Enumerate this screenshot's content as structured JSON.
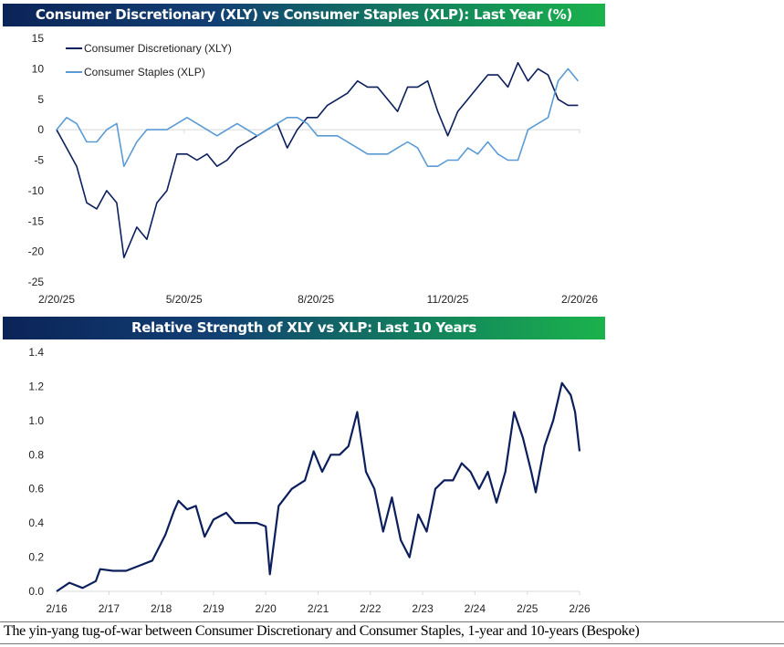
{
  "caption": "The yin-yang tug-of-war between Consumer Discretionary and Consumer Staples, 1-year and 10-years (Bespoke)",
  "colors": {
    "xly": "#0c1f5c",
    "xlp": "#5b9bd5",
    "header_start": "#0b2458",
    "header_end": "#1bb24c"
  },
  "chart_data": [
    {
      "type": "line",
      "title": "Consumer Discretionary (XLY) vs Consumer Staples (XLP): Last Year (%)",
      "xlim": [
        "2025-02-20",
        "2026-02-20"
      ],
      "ylim": [
        -25,
        15
      ],
      "yticks": [
        "15",
        "10",
        "5",
        "0",
        "-5",
        "-10",
        "-15",
        "-20",
        "-25"
      ],
      "ytick_values": [
        15,
        10,
        5,
        0,
        -5,
        -10,
        -15,
        -20,
        -25
      ],
      "xticks": [
        "2/20/25",
        "5/20/25",
        "8/20/25",
        "11/20/25",
        "2/20/26"
      ],
      "xtick_values": [
        "2025-02-20",
        "2025-05-20",
        "2025-08-20",
        "2025-11-20",
        "2026-02-20"
      ],
      "legend": "top-left",
      "grid": false,
      "x": [
        "2025-02-20",
        "2025-02-27",
        "2025-03-06",
        "2025-03-13",
        "2025-03-20",
        "2025-03-27",
        "2025-04-03",
        "2025-04-08",
        "2025-04-17",
        "2025-04-24",
        "2025-05-01",
        "2025-05-08",
        "2025-05-15",
        "2025-05-22",
        "2025-05-29",
        "2025-06-05",
        "2025-06-12",
        "2025-06-19",
        "2025-06-26",
        "2025-07-03",
        "2025-07-10",
        "2025-07-17",
        "2025-07-24",
        "2025-07-31",
        "2025-08-07",
        "2025-08-14",
        "2025-08-21",
        "2025-08-28",
        "2025-09-04",
        "2025-09-11",
        "2025-09-18",
        "2025-09-25",
        "2025-10-02",
        "2025-10-09",
        "2025-10-16",
        "2025-10-23",
        "2025-10-30",
        "2025-11-06",
        "2025-11-13",
        "2025-11-20",
        "2025-11-27",
        "2025-12-04",
        "2025-12-11",
        "2025-12-18",
        "2025-12-25",
        "2026-01-01",
        "2026-01-08",
        "2026-01-15",
        "2026-01-22",
        "2026-01-29",
        "2026-02-05",
        "2026-02-12",
        "2026-02-19"
      ],
      "series": [
        {
          "name": "Consumer Discretionary (XLY)",
          "values": [
            0,
            -3,
            -6,
            -12,
            -13,
            -10,
            -12,
            -21,
            -16,
            -18,
            -12,
            -10,
            -4,
            -4,
            -5,
            -4,
            -6,
            -5,
            -3,
            -2,
            -1,
            0,
            1,
            -3,
            0,
            2,
            2,
            4,
            5,
            6,
            8,
            7,
            7,
            5,
            3,
            7,
            7,
            8,
            3,
            -1,
            3,
            5,
            7,
            9,
            9,
            7,
            11,
            8,
            10,
            9,
            5,
            4,
            4
          ]
        },
        {
          "name": "Consumer Staples (XLP)",
          "values": [
            0,
            2,
            1,
            -2,
            -2,
            0,
            1,
            -6,
            -2,
            0,
            0,
            0,
            1,
            2,
            1,
            0,
            -1,
            0,
            1,
            0,
            -1,
            0,
            1,
            2,
            2,
            1,
            -1,
            -1,
            -1,
            -2,
            -3,
            -4,
            -4,
            -4,
            -3,
            -2,
            -3,
            -6,
            -6,
            -5,
            -5,
            -3,
            -4,
            -2,
            -4,
            -5,
            -5,
            0,
            1,
            2,
            8,
            10,
            8
          ]
        }
      ]
    },
    {
      "type": "line",
      "title": "Relative Strength of XLY vs XLP: Last 10 Years",
      "xlim": [
        "2016-02-01",
        "2026-02-01"
      ],
      "ylim": [
        0,
        1.4
      ],
      "yticks": [
        "1.4",
        "1.2",
        "1.0",
        "0.8",
        "0.6",
        "0.4",
        "0.2",
        "0.0"
      ],
      "ytick_values": [
        1.4,
        1.2,
        1.0,
        0.8,
        0.6,
        0.4,
        0.2,
        0.0
      ],
      "xticks": [
        "2/16",
        "2/17",
        "2/18",
        "2/19",
        "2/20",
        "2/21",
        "2/22",
        "2/23",
        "2/24",
        "2/25",
        "2/26"
      ],
      "xtick_values": [
        "2016-02-01",
        "2017-02-01",
        "2018-02-01",
        "2019-02-01",
        "2020-02-01",
        "2021-02-01",
        "2022-02-01",
        "2023-02-01",
        "2024-02-01",
        "2025-02-01",
        "2026-02-01"
      ],
      "grid": false,
      "x": [
        "2016-02-01",
        "2016-05-01",
        "2016-08-01",
        "2016-11-01",
        "2016-12-01",
        "2017-03-01",
        "2017-06-01",
        "2017-09-01",
        "2017-12-01",
        "2018-03-01",
        "2018-05-01",
        "2018-06-01",
        "2018-08-01",
        "2018-10-01",
        "2018-12-01",
        "2019-02-01",
        "2019-05-01",
        "2019-07-01",
        "2019-10-01",
        "2019-12-01",
        "2020-02-01",
        "2020-03-01",
        "2020-05-01",
        "2020-08-01",
        "2020-11-01",
        "2021-01-01",
        "2021-03-01",
        "2021-05-01",
        "2021-07-01",
        "2021-09-01",
        "2021-11-01",
        "2022-01-01",
        "2022-03-01",
        "2022-05-01",
        "2022-07-01",
        "2022-09-01",
        "2022-11-01",
        "2023-01-01",
        "2023-03-01",
        "2023-05-01",
        "2023-07-01",
        "2023-09-01",
        "2023-11-01",
        "2024-01-01",
        "2024-03-01",
        "2024-05-01",
        "2024-07-01",
        "2024-09-01",
        "2024-11-01",
        "2025-01-01",
        "2025-03-01",
        "2025-04-01",
        "2025-06-01",
        "2025-08-01",
        "2025-10-01",
        "2025-12-01",
        "2026-01-01",
        "2026-02-01"
      ],
      "series": [
        {
          "values": [
            0.0,
            0.05,
            0.02,
            0.06,
            0.13,
            0.12,
            0.12,
            0.15,
            0.18,
            0.33,
            0.47,
            0.53,
            0.48,
            0.5,
            0.32,
            0.42,
            0.46,
            0.4,
            0.4,
            0.4,
            0.38,
            0.1,
            0.5,
            0.6,
            0.65,
            0.82,
            0.7,
            0.8,
            0.8,
            0.85,
            1.05,
            0.7,
            0.6,
            0.35,
            0.55,
            0.3,
            0.2,
            0.45,
            0.35,
            0.6,
            0.65,
            0.65,
            0.75,
            0.7,
            0.6,
            0.7,
            0.52,
            0.7,
            1.05,
            0.9,
            0.7,
            0.58,
            0.85,
            1.0,
            1.22,
            1.15,
            1.05,
            0.82
          ]
        }
      ]
    }
  ]
}
